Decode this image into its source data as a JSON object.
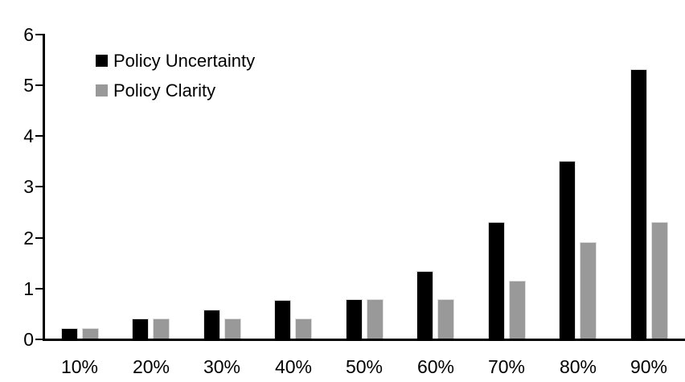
{
  "chart_data": {
    "type": "bar",
    "title": "",
    "xlabel": "",
    "ylabel": "",
    "categories": [
      "10%",
      "20%",
      "30%",
      "40%",
      "50%",
      "60%",
      "70%",
      "80%",
      "90%"
    ],
    "series": [
      {
        "name": "Policy Uncertainty",
        "color": "#000000",
        "values": [
          0.2,
          0.4,
          0.57,
          0.76,
          0.78,
          1.33,
          2.3,
          3.5,
          5.3
        ]
      },
      {
        "name": "Policy Clarity",
        "color": "#999999",
        "values": [
          0.2,
          0.4,
          0.4,
          0.4,
          0.77,
          0.77,
          1.14,
          1.9,
          2.3
        ]
      }
    ],
    "ylim": [
      0,
      6
    ],
    "yticks": [
      "0",
      "1",
      "2",
      "3",
      "4",
      "5",
      "6"
    ],
    "grid": false,
    "legend_position": "top-left",
    "background_color": "#ffffff",
    "axis_color": "#000000"
  }
}
